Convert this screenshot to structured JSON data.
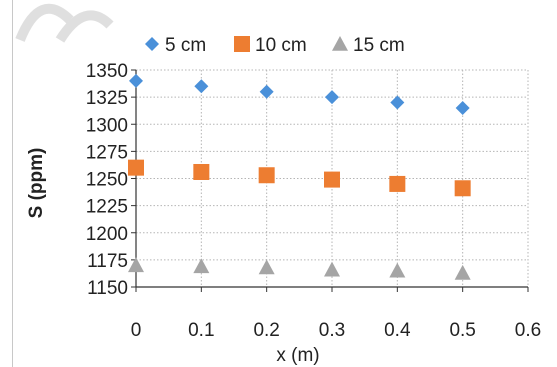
{
  "chart_data": {
    "type": "scatter",
    "title": "",
    "xlabel": "x (m)",
    "ylabel": "S (ppm)",
    "xlim": [
      0,
      0.6
    ],
    "ylim": [
      1150,
      1350
    ],
    "xticks": [
      "0",
      "0.1",
      "0.2",
      "0.3",
      "0.4",
      "0.5",
      "0.6"
    ],
    "yticks": [
      "1150",
      "1175",
      "1200",
      "1225",
      "1250",
      "1275",
      "1300",
      "1325",
      "1350"
    ],
    "grid": true,
    "legend_position": "top",
    "series": [
      {
        "name": "5 cm",
        "marker": "diamond",
        "color": "#4a90d9",
        "x": [
          0,
          0.1,
          0.2,
          0.3,
          0.4,
          0.5
        ],
        "y": [
          1340,
          1335,
          1330,
          1325,
          1320,
          1315
        ]
      },
      {
        "name": "10 cm",
        "marker": "square",
        "color": "#ed7d31",
        "x": [
          0,
          0.1,
          0.2,
          0.3,
          0.4,
          0.5
        ],
        "y": [
          1260,
          1256,
          1253,
          1249,
          1245,
          1241
        ]
      },
      {
        "name": "15 cm",
        "marker": "triangle",
        "color": "#a5a5a5",
        "x": [
          0,
          0.1,
          0.2,
          0.3,
          0.4,
          0.5
        ],
        "y": [
          1170,
          1169,
          1168,
          1166,
          1165,
          1163
        ]
      }
    ]
  }
}
